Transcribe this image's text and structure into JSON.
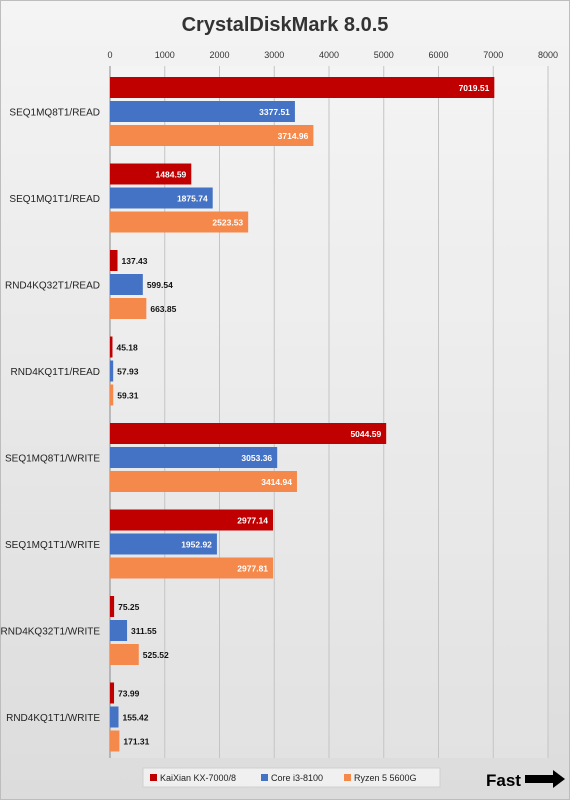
{
  "chart_data": {
    "type": "bar",
    "orientation": "horizontal",
    "title": "CrystalDiskMark 8.0.5",
    "xlim": [
      0,
      8000
    ],
    "x_ticks": [
      0,
      1000,
      2000,
      3000,
      4000,
      5000,
      6000,
      7000,
      8000
    ],
    "grid": true,
    "legend_position": "bottom",
    "categories": [
      "SEQ1MQ8T1/READ",
      "SEQ1MQ1T1/READ",
      "RND4KQ32T1/READ",
      "RND4KQ1T1/READ",
      "SEQ1MQ8T1/WRITE",
      "SEQ1MQ1T1/WRITE",
      "RND4KQ32T1/WRITE",
      "RND4KQ1T1/WRITE"
    ],
    "series": [
      {
        "name": "KaiXian KX-7000/8",
        "color": "#c00000",
        "values": [
          7019.51,
          1484.59,
          137.43,
          45.18,
          5044.59,
          2977.14,
          75.25,
          73.99
        ]
      },
      {
        "name": "Core i3-8100",
        "color": "#4472c4",
        "values": [
          3377.51,
          1875.74,
          599.54,
          57.93,
          3053.36,
          1952.92,
          311.55,
          155.42
        ]
      },
      {
        "name": "Ryzen 5 5600G",
        "color": "#f4894b",
        "values": [
          3714.96,
          2523.53,
          663.85,
          59.31,
          3414.94,
          2977.81,
          525.52,
          171.31
        ]
      }
    ],
    "annotation": "Fast"
  }
}
